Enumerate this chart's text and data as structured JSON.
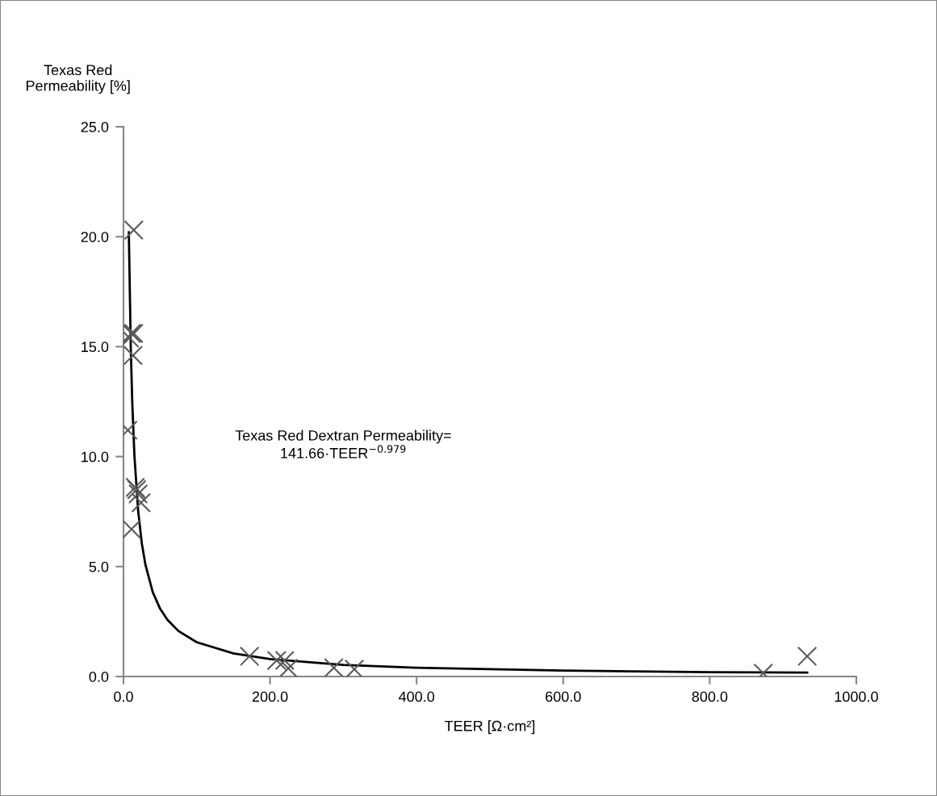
{
  "chart_data": {
    "type": "scatter",
    "ylabel": "Texas Red\nPermeability [%]",
    "xlabel": "TEER [Ω·cm²]",
    "xlim": [
      0,
      1000
    ],
    "xticks": [
      {
        "value": 0,
        "label": "0.0"
      },
      {
        "value": 200,
        "label": "200.0"
      },
      {
        "value": 400,
        "label": "400.0"
      },
      {
        "value": 600,
        "label": "600.0"
      },
      {
        "value": 800,
        "label": "800.0"
      },
      {
        "value": 1000,
        "label": "1000.0"
      }
    ],
    "ylim": [
      0,
      25
    ],
    "yticks": [
      {
        "value": 0,
        "label": "0.0"
      },
      {
        "value": 5,
        "label": "5.0"
      },
      {
        "value": 10,
        "label": "10.0"
      },
      {
        "value": 15,
        "label": "15.0"
      },
      {
        "value": 20,
        "label": "20.0"
      },
      {
        "value": 25,
        "label": "25.0"
      }
    ],
    "grid": false,
    "legend": false,
    "annotations": [
      "Texas Red Dextran Permeability=\n141.66·TEER$^{−0.979}$"
    ],
    "series": [
      {
        "marker": "cross",
        "color": "#595959",
        "x": [
          14,
          11,
          14,
          8,
          13,
          6,
          16,
          18,
          20,
          24,
          11,
          172,
          209,
          220,
          225,
          287,
          315,
          873,
          933
        ],
        "values": [
          20.3,
          15.6,
          15.6,
          15.4,
          14.6,
          11.2,
          8.6,
          8.5,
          8.3,
          7.9,
          6.7,
          0.92,
          0.73,
          0.73,
          0.37,
          0.4,
          0.33,
          0.15,
          0.92
        ]
      },
      {
        "type": "line",
        "color": "#000000",
        "line_style": "solid",
        "marker": "none",
        "x": [
          7.3,
          10,
          12,
          15,
          20,
          25,
          30,
          40,
          50,
          60,
          75,
          100,
          150,
          200,
          300,
          400,
          600,
          800,
          933
        ],
        "values": [
          20.2,
          14.9,
          12.44,
          10.0,
          7.54,
          6.06,
          5.08,
          3.83,
          3.08,
          2.58,
          2.07,
          1.56,
          1.05,
          0.79,
          0.53,
          0.4,
          0.27,
          0.2,
          0.18
        ]
      }
    ]
  }
}
